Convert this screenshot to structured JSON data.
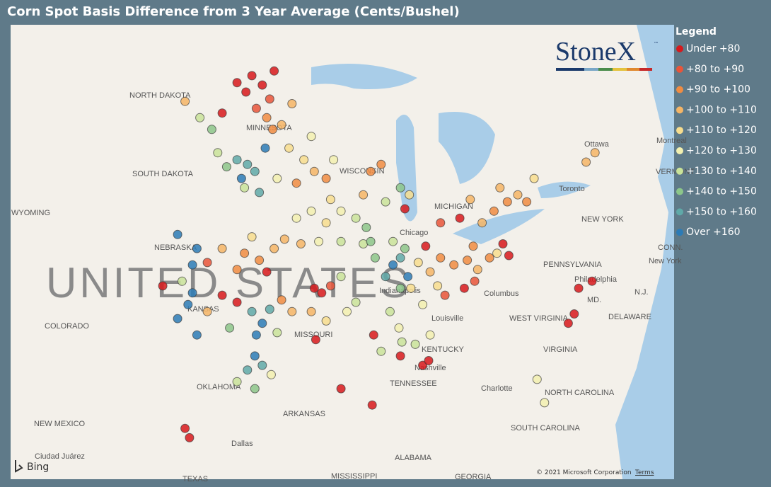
{
  "title": "Corn Spot Basis Difference from 3 Year Average (Cents/Bushel)",
  "legend": {
    "title": "Legend",
    "items": [
      {
        "label": "Under +80",
        "color": "#d7191c"
      },
      {
        "label": "+80 to +90",
        "color": "#e8553a"
      },
      {
        "label": "+90 to +100",
        "color": "#f08c42"
      },
      {
        "label": "+100 to +110",
        "color": "#f5b566"
      },
      {
        "label": "+110 to +120",
        "color": "#f7dd8e"
      },
      {
        "label": "+120 to +130",
        "color": "#f2f0b0"
      },
      {
        "label": "+130 to +140",
        "color": "#c9e39a"
      },
      {
        "label": "+140 to +150",
        "color": "#8cc68a"
      },
      {
        "label": "+150 to +160",
        "color": "#5fa9a8"
      },
      {
        "label": "Over +160",
        "color": "#2c7bb6"
      }
    ]
  },
  "logo": {
    "name": "StoneX",
    "mark": "™"
  },
  "attribution": {
    "brand": "Bing",
    "copyright": "© 2021 Microsoft Corporation",
    "terms": "Terms"
  },
  "map": {
    "labels": [
      "NORTH DAKOTA",
      "MINNESOTA",
      "SOUTH DAKOTA",
      "WISCONSIN",
      "WYOMING",
      "NEBRASKA",
      "UNITED STATES",
      "COLORADO",
      "MISSOURI",
      "KANSAS",
      "OKLAHOMA",
      "NEW MEXICO",
      "ARKANSAS",
      "TEXAS",
      "MISSISSIPPI",
      "ALABAMA",
      "GEORGIA",
      "TENNESSEE",
      "KENTUCKY",
      "WEST VIRGINIA",
      "VIRGINIA",
      "NORTH CAROLINA",
      "SOUTH CAROLINA",
      "PENNSYLVANIA",
      "NEW YORK",
      "DELAWARE",
      "MD.",
      "N.J.",
      "MICHIGAN",
      "Chicago",
      "Columbus",
      "Louisville",
      "Nashville",
      "Charlotte",
      "Philadelphia",
      "New York",
      "Toronto",
      "Ottawa",
      "Montreal",
      "Dallas",
      "Ciudad Juárez",
      "Indianapolis",
      "VERMONT",
      "CONN."
    ],
    "points": [
      [
        -98.5,
        48.6,
        0
      ],
      [
        -97.8,
        48.2,
        0
      ],
      [
        -98.9,
        47.9,
        0
      ],
      [
        -97.3,
        47.6,
        1
      ],
      [
        -99.5,
        48.3,
        0
      ],
      [
        -100.5,
        47.0,
        0
      ],
      [
        -97.0,
        48.8,
        0
      ],
      [
        -98.2,
        47.2,
        1
      ],
      [
        -97.5,
        46.8,
        2
      ],
      [
        -97.1,
        46.3,
        2
      ],
      [
        -102,
        46.8,
        6
      ],
      [
        -101.2,
        46.3,
        7
      ],
      [
        -103,
        47.5,
        3
      ],
      [
        -99.5,
        45,
        8
      ],
      [
        -98.8,
        44.8,
        8
      ],
      [
        -99.2,
        44.2,
        9
      ],
      [
        -98.3,
        44.5,
        8
      ],
      [
        -97.6,
        45.5,
        9
      ],
      [
        -100.2,
        44.7,
        7
      ],
      [
        -98.0,
        43.6,
        8
      ],
      [
        -99.0,
        43.8,
        6
      ],
      [
        -100.8,
        45.3,
        6
      ],
      [
        -96,
        45.5,
        4
      ],
      [
        -95,
        45,
        4
      ],
      [
        -94.3,
        44.5,
        3
      ],
      [
        -95.5,
        44,
        2
      ],
      [
        -93.5,
        44.2,
        2
      ],
      [
        -96.5,
        46.5,
        3
      ],
      [
        -95.8,
        47.4,
        3
      ],
      [
        -94.5,
        46,
        5
      ],
      [
        -93,
        45,
        5
      ],
      [
        -96.8,
        44.2,
        5
      ],
      [
        -90.5,
        44.5,
        2
      ],
      [
        -91,
        43.5,
        3
      ],
      [
        -89.5,
        43.2,
        6
      ],
      [
        -88.5,
        43.8,
        7
      ],
      [
        -89.8,
        44.8,
        2
      ],
      [
        -88.2,
        42.9,
        0
      ],
      [
        -87.9,
        43.5,
        4
      ],
      [
        -95.5,
        42.5,
        5
      ],
      [
        -94.5,
        42.8,
        5
      ],
      [
        -93.5,
        42.3,
        4
      ],
      [
        -92.5,
        42.8,
        5
      ],
      [
        -91.5,
        42.5,
        6
      ],
      [
        -94,
        41.5,
        5
      ],
      [
        -92.5,
        41.5,
        6
      ],
      [
        -91,
        41.4,
        6
      ],
      [
        -95.2,
        41.4,
        3
      ],
      [
        -93.2,
        43.3,
        4
      ],
      [
        -90.8,
        42.1,
        7
      ],
      [
        -99,
        41,
        2
      ],
      [
        -98,
        40.7,
        2
      ],
      [
        -97,
        41.2,
        3
      ],
      [
        -96.3,
        41.6,
        3
      ],
      [
        -100.5,
        41.2,
        3
      ],
      [
        -101.5,
        40.6,
        1
      ],
      [
        -99.5,
        40.3,
        2
      ],
      [
        -97.5,
        40.2,
        0
      ],
      [
        -98.5,
        41.7,
        4
      ],
      [
        -102.2,
        41.2,
        9
      ],
      [
        -103.5,
        41.8,
        9
      ],
      [
        -98.5,
        38.5,
        8
      ],
      [
        -97.8,
        38,
        9
      ],
      [
        -98.2,
        37.5,
        9
      ],
      [
        -97.3,
        38.6,
        8
      ],
      [
        -99.5,
        38.9,
        0
      ],
      [
        -100.5,
        39.2,
        0
      ],
      [
        -96.5,
        39,
        2
      ],
      [
        -95.8,
        38.5,
        3
      ],
      [
        -101.5,
        38.5,
        3
      ],
      [
        -100,
        37.8,
        7
      ],
      [
        -96.8,
        37.6,
        6
      ],
      [
        -102.5,
        39.3,
        9
      ],
      [
        -102.8,
        38.8,
        9
      ],
      [
        -103.5,
        38.2,
        9
      ],
      [
        -102.2,
        37.5,
        9
      ],
      [
        -104.5,
        39.6,
        0
      ],
      [
        -103.2,
        39.8,
        6
      ],
      [
        -102.5,
        40.5,
        9
      ],
      [
        -98.3,
        36.6,
        9
      ],
      [
        -97.8,
        36.2,
        8
      ],
      [
        -98.8,
        36,
        8
      ],
      [
        -97.2,
        35.8,
        5
      ],
      [
        -99.5,
        35.5,
        6
      ],
      [
        -98.3,
        35.2,
        7
      ],
      [
        -103,
        33.5,
        0
      ],
      [
        -102.7,
        33.1,
        0
      ],
      [
        -94.3,
        39.5,
        0
      ],
      [
        -93.8,
        39.3,
        0
      ],
      [
        -93.2,
        39.6,
        1
      ],
      [
        -92.5,
        40,
        6
      ],
      [
        -94.5,
        38.5,
        3
      ],
      [
        -93.5,
        38.1,
        4
      ],
      [
        -92.1,
        38.5,
        5
      ],
      [
        -94.2,
        37.3,
        0
      ],
      [
        -91.5,
        38.9,
        6
      ],
      [
        -90.3,
        37.5,
        0
      ],
      [
        -89.8,
        36.8,
        6
      ],
      [
        -89,
        40.5,
        9
      ],
      [
        -88.5,
        40.8,
        8
      ],
      [
        -88,
        40,
        9
      ],
      [
        -89.5,
        40,
        8
      ],
      [
        -88.5,
        39.5,
        7
      ],
      [
        -90.2,
        40.8,
        7
      ],
      [
        -89,
        41.5,
        6
      ],
      [
        -88.2,
        41.2,
        7
      ],
      [
        -90.5,
        41.5,
        7
      ],
      [
        -89.2,
        38.5,
        6
      ],
      [
        -88.6,
        37.8,
        5
      ],
      [
        -87.8,
        39.5,
        4
      ],
      [
        -86.5,
        40.2,
        3
      ],
      [
        -85.8,
        40.8,
        2
      ],
      [
        -86,
        39.6,
        4
      ],
      [
        -87,
        38.8,
        5
      ],
      [
        -85.5,
        39.2,
        1
      ],
      [
        -86.8,
        41.3,
        0
      ],
      [
        -84.9,
        40.5,
        2
      ],
      [
        -87.3,
        40.6,
        4
      ],
      [
        -84,
        40.7,
        2
      ],
      [
        -83.3,
        40.3,
        3
      ],
      [
        -82.5,
        40.8,
        2
      ],
      [
        -84.2,
        39.5,
        0
      ],
      [
        -83.5,
        39.8,
        1
      ],
      [
        -82,
        41,
        4
      ],
      [
        -81.2,
        40.9,
        0
      ],
      [
        -81.6,
        41.4,
        0
      ],
      [
        -83.6,
        41.3,
        2
      ],
      [
        -84.5,
        42.5,
        0
      ],
      [
        -85.8,
        42.3,
        1
      ],
      [
        -83.8,
        43.3,
        3
      ],
      [
        -82.2,
        42.8,
        2
      ],
      [
        -81.3,
        43.2,
        2
      ],
      [
        -80.6,
        43.5,
        3
      ],
      [
        -80,
        43.2,
        2
      ],
      [
        -81.8,
        43.8,
        3
      ],
      [
        -83,
        42.3,
        3
      ],
      [
        -79.5,
        44.2,
        4
      ],
      [
        -76,
        44.9,
        3
      ],
      [
        -75.4,
        45.3,
        3
      ],
      [
        -86.5,
        37.5,
        5
      ],
      [
        -87.5,
        37.1,
        6
      ],
      [
        -88.5,
        36.6,
        0
      ],
      [
        -87,
        36.2,
        0
      ],
      [
        -86.6,
        36.4,
        0
      ],
      [
        -88.4,
        37.2,
        6
      ],
      [
        -76.5,
        39.5,
        0
      ],
      [
        -75.6,
        39.8,
        0
      ],
      [
        -76.8,
        38.4,
        0
      ],
      [
        -77.2,
        38.0,
        0
      ],
      [
        -79.3,
        35.6,
        5
      ],
      [
        -78.8,
        34.6,
        5
      ],
      [
        -90.4,
        34.5,
        0
      ],
      [
        -92.5,
        35.2,
        0
      ]
    ]
  }
}
